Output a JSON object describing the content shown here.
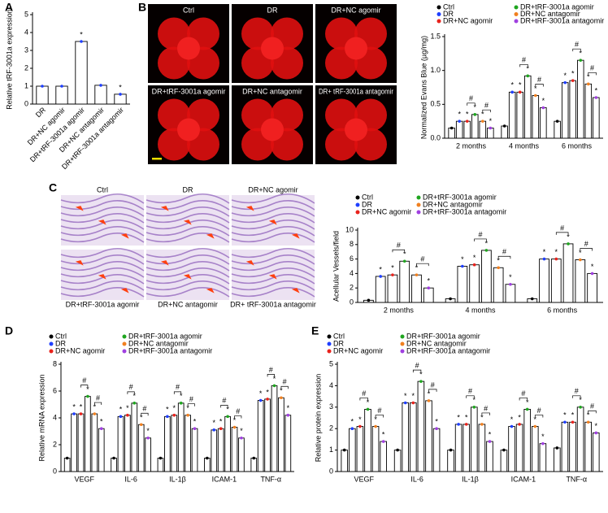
{
  "images": {
    "B": {
      "labels": [
        "Ctrl",
        "DR",
        "DR+NC agomir",
        "DR+tRF-3001a agomir",
        "DR+NC antagomir",
        "DR+ tRF-3001a antagomir"
      ]
    },
    "C": {
      "labels": [
        "Ctrl",
        "DR",
        "DR+NC agomir",
        "DR+tRF-3001a agomir",
        "DR+NC antagomir",
        "DR+ tRF-3001a antagomir"
      ]
    }
  },
  "chart_data": [
    {
      "type": "bar",
      "panel": "A",
      "ylabel": "Relative tRF-3001a expression",
      "categories": [
        "DR",
        "DR+NC agomir",
        "DR+tRF-3001a agomir",
        "DR+NC antagomir",
        "DR+tRF-3001a antagomir"
      ],
      "values": [
        1.0,
        1.0,
        3.5,
        1.05,
        0.55
      ],
      "color": "#1f3fff",
      "markers": [
        null,
        null,
        "*",
        null,
        "*"
      ],
      "ylim": [
        0,
        5
      ],
      "yticks": [
        0,
        1,
        2,
        3,
        4,
        5
      ],
      "grid": false
    },
    {
      "type": "bar",
      "panel": "B",
      "ylabel": "Normalized Evans Blue (µg/mg)",
      "categories": [
        "2 months",
        "4 months",
        "6 months"
      ],
      "series": [
        {
          "name": "Ctrl",
          "color": "#000000",
          "values": [
            0.15,
            0.18,
            0.25
          ],
          "markers": [
            null,
            null,
            null
          ]
        },
        {
          "name": "DR",
          "color": "#1f3fff",
          "values": [
            0.25,
            0.68,
            0.82
          ],
          "markers": [
            "*",
            "*",
            "*"
          ]
        },
        {
          "name": "DR+NC agomir",
          "color": "#e8221c",
          "values": [
            0.25,
            0.68,
            0.85
          ],
          "markers": [
            "*",
            "*",
            "*"
          ]
        },
        {
          "name": "DR+tRF-3001a agomir",
          "color": "#1fa51f",
          "values": [
            0.35,
            0.92,
            1.15
          ],
          "markers": [
            "*",
            "*",
            "*"
          ]
        },
        {
          "name": "DR+NC antagomir",
          "color": "#f08020",
          "values": [
            0.25,
            0.63,
            0.8
          ],
          "markers": [
            "*",
            "*",
            "*"
          ]
        },
        {
          "name": "DR+tRF-3001a antagomir",
          "color": "#a040e0",
          "values": [
            0.15,
            0.45,
            0.6
          ],
          "markers": [
            "*",
            "*",
            "*"
          ]
        }
      ],
      "comparisons": [
        {
          "label": "#",
          "series": [
            2,
            3
          ]
        },
        {
          "label": "#",
          "series": [
            4,
            5
          ]
        }
      ],
      "ylim": [
        0,
        1.5
      ],
      "yticks": [
        {
          "value": 0,
          "label": "0.0"
        },
        0.5,
        {
          "value": 1,
          "label": "1.0"
        },
        1.5
      ],
      "grid": false
    },
    {
      "type": "bar",
      "panel": "C",
      "ylabel": "Acellular Vessels/field",
      "categories": [
        "2 months",
        "4 months",
        "6 months"
      ],
      "series": [
        {
          "name": "Ctrl",
          "color": "#000000",
          "values": [
            0.3,
            0.5,
            0.5
          ],
          "markers": [
            null,
            null,
            null
          ]
        },
        {
          "name": "DR",
          "color": "#1f3fff",
          "values": [
            3.6,
            5.0,
            6.0
          ],
          "markers": [
            "*",
            "*",
            "*"
          ]
        },
        {
          "name": "DR+NC agomir",
          "color": "#e8221c",
          "values": [
            3.8,
            5.2,
            6.0
          ],
          "markers": [
            "*",
            "*",
            "*"
          ]
        },
        {
          "name": "DR+tRF-3001a agomir",
          "color": "#1fa51f",
          "values": [
            5.7,
            7.2,
            8.1
          ],
          "markers": [
            "*",
            "*",
            "*"
          ]
        },
        {
          "name": "DR+NC antagomir",
          "color": "#f08020",
          "values": [
            3.8,
            4.8,
            5.9
          ],
          "markers": [
            "*",
            "*",
            "*"
          ]
        },
        {
          "name": "DR+tRF-3001a antagomir",
          "color": "#a040e0",
          "values": [
            2.0,
            2.5,
            4.0
          ],
          "markers": [
            "*",
            "*",
            "*"
          ]
        }
      ],
      "comparisons": [
        {
          "label": "#",
          "series": [
            2,
            3
          ]
        },
        {
          "label": "#",
          "series": [
            4,
            5
          ]
        }
      ],
      "ylim": [
        0,
        10
      ],
      "yticks": [
        0,
        2,
        4,
        6,
        8,
        10
      ],
      "grid": false
    },
    {
      "type": "bar",
      "panel": "D",
      "ylabel": "Relative mRNA expression",
      "categories": [
        "VEGF",
        "IL-6",
        "IL-1β",
        "ICAM-1",
        "TNF-α"
      ],
      "series": [
        {
          "name": "Ctrl",
          "color": "#000000",
          "values": [
            1,
            1,
            1,
            1,
            1
          ],
          "markers": [
            null,
            null,
            null,
            null,
            null
          ]
        },
        {
          "name": "DR",
          "color": "#1f3fff",
          "values": [
            4.3,
            4.1,
            4.1,
            3.1,
            5.3
          ],
          "markers": [
            "*",
            "*",
            "*",
            "*",
            "*"
          ]
        },
        {
          "name": "DR+NC agomir",
          "color": "#e8221c",
          "values": [
            4.3,
            4.2,
            4.2,
            3.2,
            5.4
          ],
          "markers": [
            "*",
            "*",
            "*",
            "*",
            "*"
          ]
        },
        {
          "name": "DR+tRF-3001a agomir",
          "color": "#1fa51f",
          "values": [
            5.6,
            5.1,
            5.1,
            4.1,
            6.4
          ],
          "markers": [
            "*",
            "*",
            "*",
            "*",
            "*"
          ]
        },
        {
          "name": "DR+NC antagomir",
          "color": "#f08020",
          "values": [
            4.3,
            3.5,
            4.2,
            3.3,
            5.5
          ],
          "markers": [
            "*",
            "*",
            "*",
            "*",
            "*"
          ]
        },
        {
          "name": "DR+tRF-3001a antagomir",
          "color": "#a040e0",
          "values": [
            3.2,
            2.5,
            3.2,
            2.5,
            4.2
          ],
          "markers": [
            "*",
            "*",
            "*",
            "*",
            "*"
          ]
        }
      ],
      "comparisons": [
        {
          "label": "#",
          "series": [
            2,
            3
          ]
        },
        {
          "label": "#",
          "series": [
            4,
            5
          ]
        }
      ],
      "ylim": [
        0,
        8
      ],
      "yticks": [
        0,
        2,
        4,
        6,
        8
      ],
      "grid": false
    },
    {
      "type": "bar",
      "panel": "E",
      "ylabel": "Relative protein expression",
      "categories": [
        "VEGF",
        "IL-6",
        "IL-1β",
        "ICAM-1",
        "TNF-α"
      ],
      "series": [
        {
          "name": "Ctrl",
          "color": "#000000",
          "values": [
            1,
            1,
            1,
            1,
            1.1
          ],
          "markers": [
            null,
            null,
            null,
            null,
            null
          ]
        },
        {
          "name": "DR",
          "color": "#1f3fff",
          "values": [
            2.0,
            3.2,
            2.2,
            2.1,
            2.3
          ],
          "markers": [
            "*",
            "*",
            "*",
            "*",
            "*"
          ]
        },
        {
          "name": "DR+NC agomir",
          "color": "#e8221c",
          "values": [
            2.1,
            3.2,
            2.2,
            2.2,
            2.3
          ],
          "markers": [
            "*",
            "*",
            "*",
            "*",
            "*"
          ]
        },
        {
          "name": "DR+tRF-3001a agomir",
          "color": "#1fa51f",
          "values": [
            2.9,
            4.2,
            3.0,
            2.9,
            3.0
          ],
          "markers": [
            "*",
            "*",
            "*",
            "*",
            "*"
          ]
        },
        {
          "name": "DR+NC antagomir",
          "color": "#f08020",
          "values": [
            2.1,
            3.3,
            2.2,
            2.1,
            2.3
          ],
          "markers": [
            "*",
            "*",
            "*",
            "*",
            "*"
          ]
        },
        {
          "name": "DR+tRF-3001a antagomir",
          "color": "#a040e0",
          "values": [
            1.4,
            2.0,
            1.4,
            1.3,
            1.8
          ],
          "markers": [
            "*",
            "*",
            "*",
            "*",
            "*"
          ]
        }
      ],
      "comparisons": [
        {
          "label": "#",
          "series": [
            2,
            3
          ]
        },
        {
          "label": "#",
          "series": [
            4,
            5
          ]
        }
      ],
      "ylim": [
        0,
        5
      ],
      "yticks": [
        0,
        1,
        2,
        3,
        4,
        5
      ],
      "grid": false
    }
  ]
}
